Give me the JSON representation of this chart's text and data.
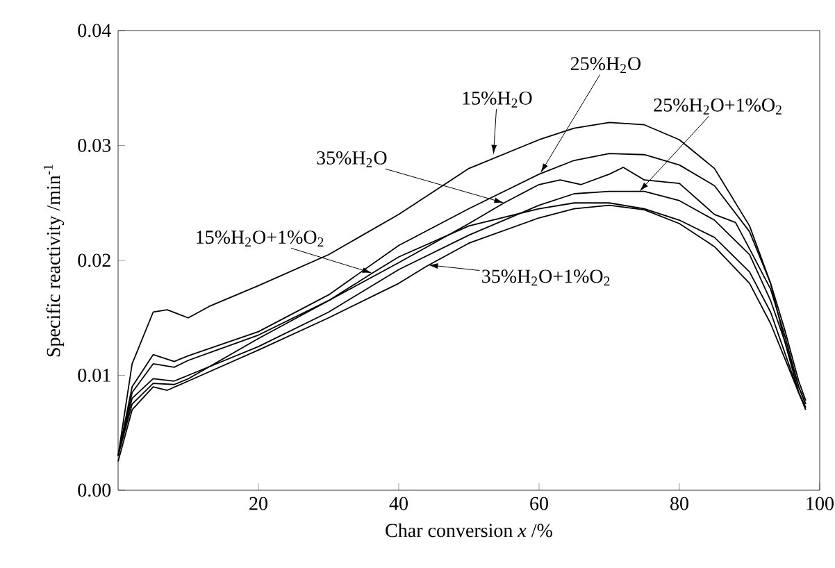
{
  "chart_data": {
    "type": "line",
    "xlabel": "Char conversion    *x* /%",
    "ylabel": "Specific reactivity /min$^{-1}$",
    "xlim": [
      0,
      100
    ],
    "ylim": [
      0,
      0.04
    ],
    "xticks": [
      20,
      40,
      60,
      80,
      100
    ],
    "yticks": [
      {
        "value": 0,
        "label": "0.00"
      },
      {
        "value": 0.01,
        "label": "0.01"
      },
      {
        "value": 0.02,
        "label": "0.02"
      },
      {
        "value": 0.03,
        "label": "0.03"
      },
      {
        "value": 0.04,
        "label": "0.04"
      }
    ],
    "grid": false,
    "marker": "none",
    "line_style": "solid",
    "series": [
      {
        "color": "#000000",
        "x": [
          0,
          2,
          5,
          7,
          10,
          13,
          20,
          30,
          40,
          50,
          60,
          65,
          70,
          75,
          80,
          85,
          90,
          93,
          95,
          97,
          98
        ],
        "values": [
          0.003,
          0.011,
          0.0155,
          0.0157,
          0.015,
          0.016,
          0.0178,
          0.0205,
          0.024,
          0.028,
          0.0305,
          0.0315,
          0.032,
          0.0318,
          0.0305,
          0.028,
          0.023,
          0.018,
          0.013,
          0.009,
          0.0075
        ]
      },
      {
        "color": "#000000",
        "x": [
          0,
          2,
          5,
          8,
          10,
          20,
          30,
          40,
          50,
          60,
          65,
          70,
          75,
          80,
          85,
          90,
          93,
          95,
          97,
          98
        ],
        "values": [
          0.003,
          0.009,
          0.0118,
          0.0112,
          0.0117,
          0.0138,
          0.017,
          0.0213,
          0.0245,
          0.0275,
          0.0287,
          0.0293,
          0.0292,
          0.0283,
          0.0265,
          0.0225,
          0.018,
          0.014,
          0.0095,
          0.0078
        ]
      },
      {
        "color": "#000000",
        "x": [
          0,
          2,
          5,
          8,
          10,
          20,
          30,
          40,
          50,
          55,
          60,
          63,
          66,
          70,
          72,
          75,
          80,
          85,
          88,
          90,
          93,
          95,
          97,
          98
        ],
        "values": [
          0.003,
          0.0085,
          0.011,
          0.0107,
          0.0113,
          0.0135,
          0.0165,
          0.0198,
          0.0232,
          0.025,
          0.0266,
          0.027,
          0.0266,
          0.0275,
          0.0281,
          0.027,
          0.0267,
          0.024,
          0.0233,
          0.021,
          0.0175,
          0.0135,
          0.009,
          0.0075
        ]
      },
      {
        "color": "#000000",
        "x": [
          0,
          2,
          5,
          8,
          10,
          20,
          30,
          40,
          50,
          60,
          65,
          70,
          75,
          80,
          85,
          90,
          93,
          95,
          97,
          98
        ],
        "values": [
          0.003,
          0.008,
          0.0097,
          0.0095,
          0.01,
          0.0125,
          0.0155,
          0.0192,
          0.0222,
          0.0248,
          0.0258,
          0.026,
          0.026,
          0.0252,
          0.0235,
          0.0205,
          0.0165,
          0.013,
          0.0085,
          0.0072
        ]
      },
      {
        "color": "#000000",
        "x": [
          0,
          2,
          5,
          8,
          10,
          20,
          30,
          36,
          40,
          50,
          60,
          65,
          70,
          75,
          80,
          85,
          90,
          93,
          95,
          97,
          98
        ],
        "values": [
          0.003,
          0.0075,
          0.0093,
          0.0092,
          0.0097,
          0.0132,
          0.0165,
          0.0188,
          0.0203,
          0.023,
          0.0245,
          0.025,
          0.025,
          0.0245,
          0.0235,
          0.022,
          0.019,
          0.0155,
          0.012,
          0.0085,
          0.007
        ]
      },
      {
        "color": "#000000",
        "x": [
          0,
          2,
          5,
          7,
          10,
          20,
          30,
          40,
          44,
          50,
          60,
          65,
          70,
          75,
          80,
          85,
          90,
          93,
          95,
          97,
          98
        ],
        "values": [
          0.0025,
          0.007,
          0.009,
          0.0087,
          0.0095,
          0.0122,
          0.015,
          0.018,
          0.0195,
          0.0215,
          0.0237,
          0.0245,
          0.0248,
          0.0244,
          0.0232,
          0.0212,
          0.018,
          0.0145,
          0.0115,
          0.0085,
          0.0072
        ]
      }
    ],
    "annotations": [
      {
        "text": "15%H$_{2}$O",
        "x": 53.5,
        "y": 0.0292
      },
      {
        "text": "25%H$_{2}$O",
        "x": 60.2,
        "y": 0.0276
      },
      {
        "text": "25%H$_{2}$O+1%O$_{2}$",
        "x": 74.3,
        "y": 0.026
      },
      {
        "text": "35%H$_{2}$O",
        "x": 55,
        "y": 0.025
      },
      {
        "text": "15%H$_{2}$O+1%O$_{2}$",
        "x": 36.2,
        "y": 0.0189
      },
      {
        "text": "35%H$_{2}$O+1%O$_{2}$",
        "x": 44.2,
        "y": 0.0196
      }
    ]
  }
}
